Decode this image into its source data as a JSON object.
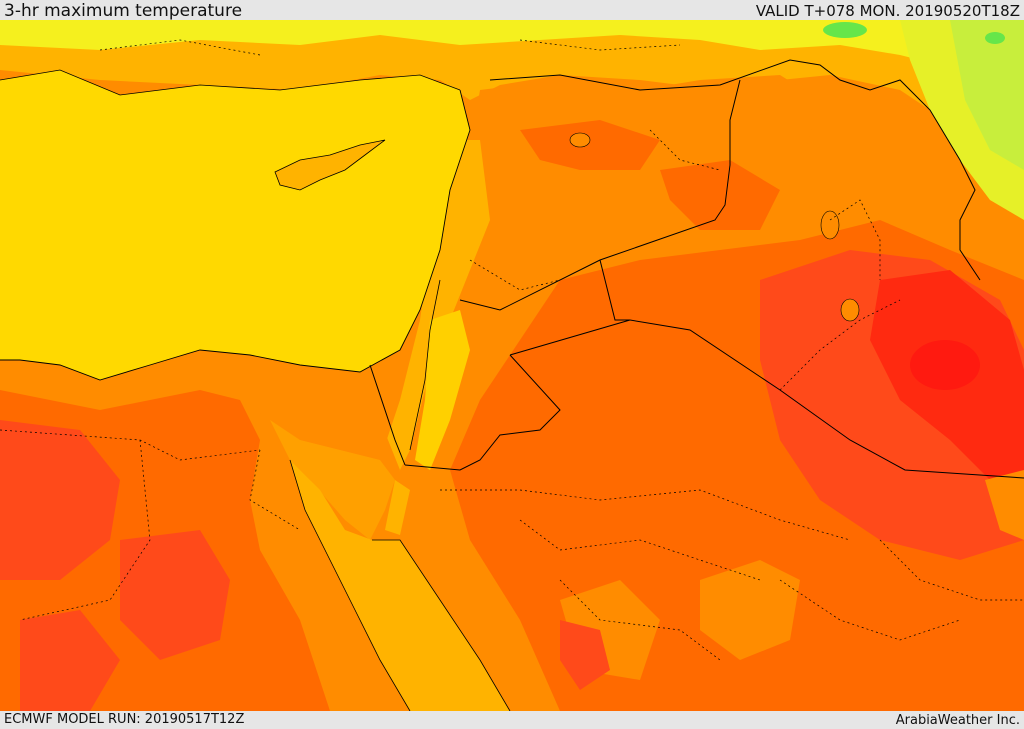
{
  "header": {
    "title": "3-hr maximum temperature",
    "valid": "VALID T+078 MON. 20190520T18Z"
  },
  "footer": {
    "model_run": "ECMWF MODEL RUN: 20190517T12Z",
    "credit": "ArabiaWeather Inc."
  },
  "colors": {
    "sea": "#ffd900",
    "warm_yellow": "#ffe600",
    "hot_yellow": "#ffb300",
    "amber": "#ffa000",
    "orange": "#ff8c00",
    "dark_orange": "#ff6a00",
    "red_orange": "#ff4a1a",
    "red": "#ff2a10",
    "cool_yellow": "#f5f01e",
    "green_yellow": "#c8ee3c",
    "green": "#66e64a",
    "border": "#000000"
  }
}
